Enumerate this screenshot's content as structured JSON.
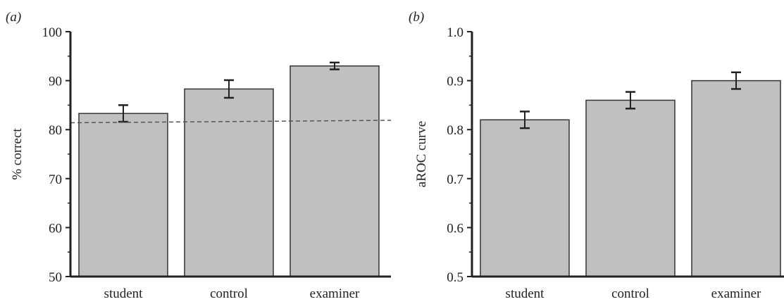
{
  "colors": {
    "bar_fill": "#c0c0c0",
    "bar_stroke": "#333333",
    "axis": "#222222",
    "error_bar": "#222222",
    "reference_line": "#555555"
  },
  "chart_data": [
    {
      "type": "bar",
      "panel_label": "(a)",
      "categories": [
        "student",
        "control",
        "examiner"
      ],
      "values": [
        83.3,
        88.3,
        93.0
      ],
      "errors": [
        1.7,
        1.8,
        0.7
      ],
      "ylabel": "% correct",
      "xlabel": "",
      "ylim": [
        50,
        100
      ],
      "yticks": [
        50,
        60,
        70,
        80,
        90,
        100
      ],
      "ytick_labels": [
        "50",
        "60",
        "70",
        "80",
        "90",
        "100"
      ],
      "reference_line": {
        "y_start": 81.4,
        "y_end": 81.9,
        "style": "dashed"
      },
      "grid": false
    },
    {
      "type": "bar",
      "panel_label": "(b)",
      "categories": [
        "student",
        "control",
        "examiner"
      ],
      "values": [
        0.82,
        0.86,
        0.9
      ],
      "errors": [
        0.017,
        0.017,
        0.017
      ],
      "ylabel": "aROC curve",
      "xlabel": "",
      "ylim": [
        0.5,
        1.0
      ],
      "yticks": [
        0.5,
        0.6,
        0.7,
        0.8,
        0.9,
        1.0
      ],
      "ytick_labels": [
        "0.5",
        "0.6",
        "0.7",
        "0.8",
        "0.9",
        "1.0"
      ],
      "grid": false
    }
  ]
}
